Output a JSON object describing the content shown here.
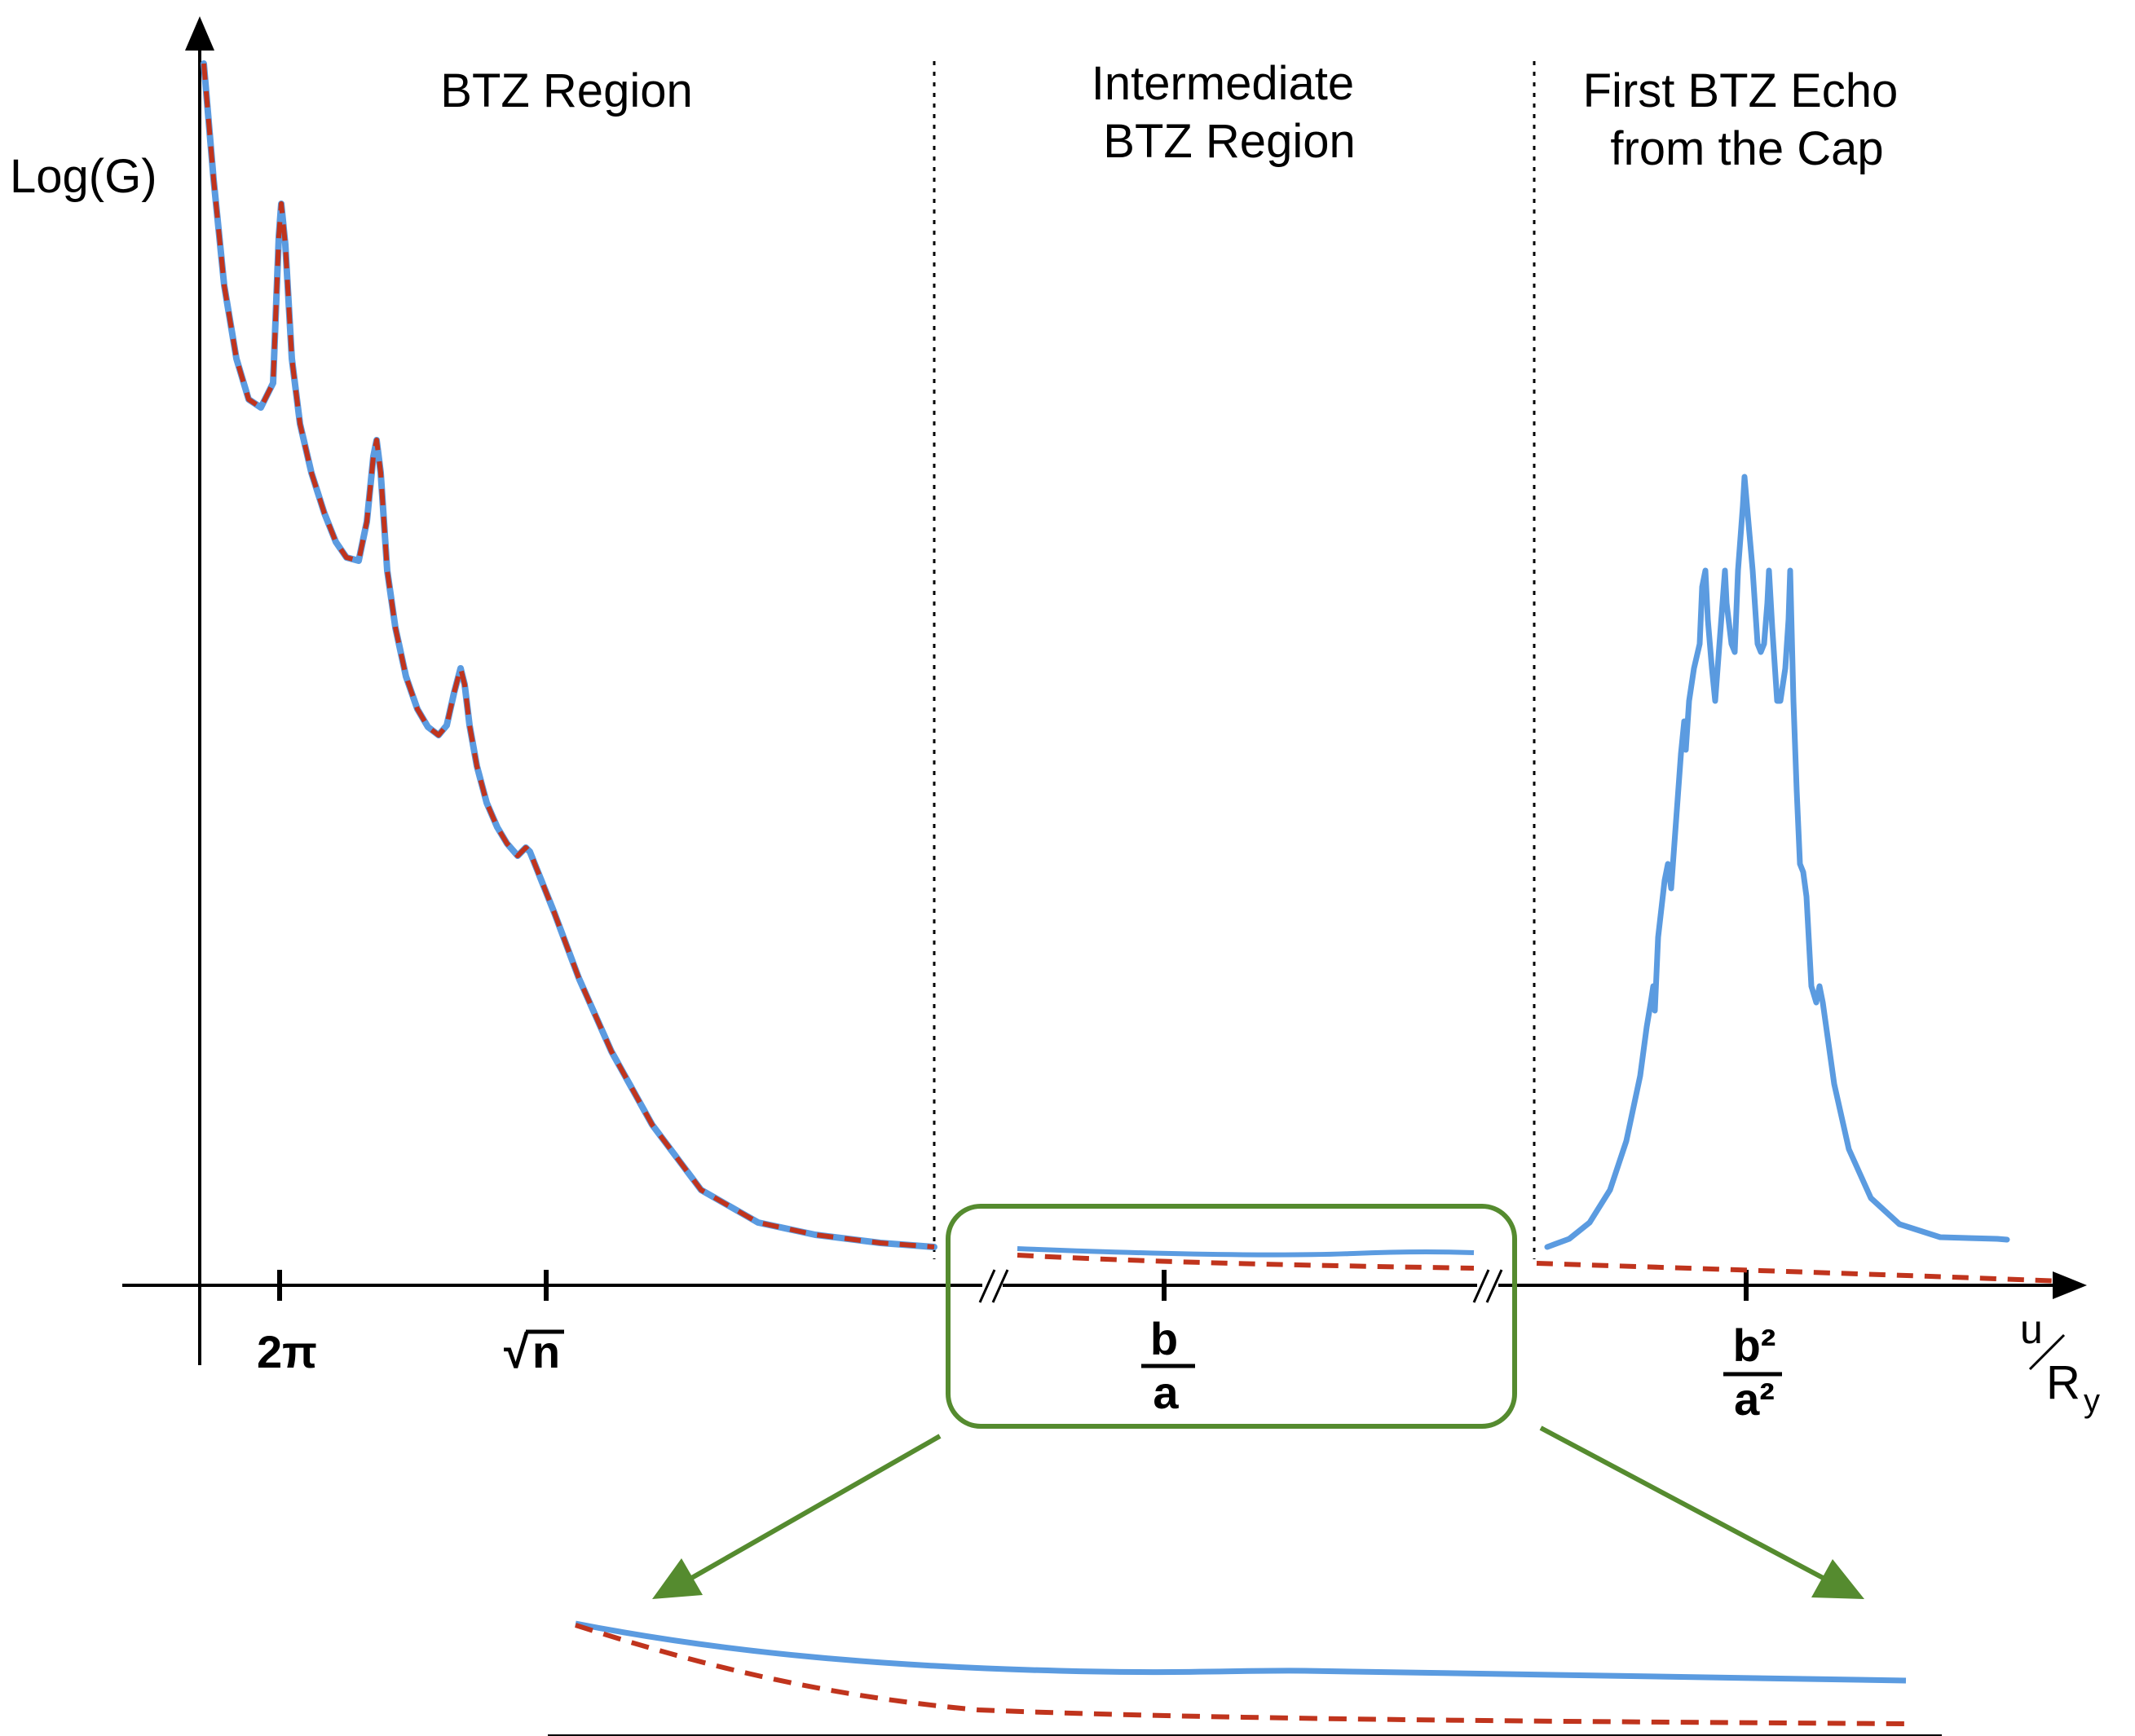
{
  "y_axis_label": "Log(G)",
  "x_axis_label": {
    "numerator": "u",
    "denominator": "R",
    "subscript": "y"
  },
  "regions": [
    {
      "lines": [
        "BTZ Region"
      ]
    },
    {
      "lines": [
        "Intermediate",
        "BTZ Region"
      ]
    },
    {
      "lines": [
        "First BTZ Echo",
        "from the Cap"
      ]
    }
  ],
  "ticks": {
    "two_pi": "2π",
    "sqrt_n": {
      "radical": "√",
      "radicand": "n"
    },
    "b_over_a": {
      "numerator": "b",
      "denominator": "a"
    },
    "b2_over_a2": {
      "numerator": "b²",
      "denominator": "a²"
    }
  },
  "colors": {
    "exact_curve": "#5b9be0",
    "approx_curve": "#c0341d",
    "zoom_box": "#558b2f",
    "axis": "#000000"
  },
  "legend": "none",
  "grid": false
}
